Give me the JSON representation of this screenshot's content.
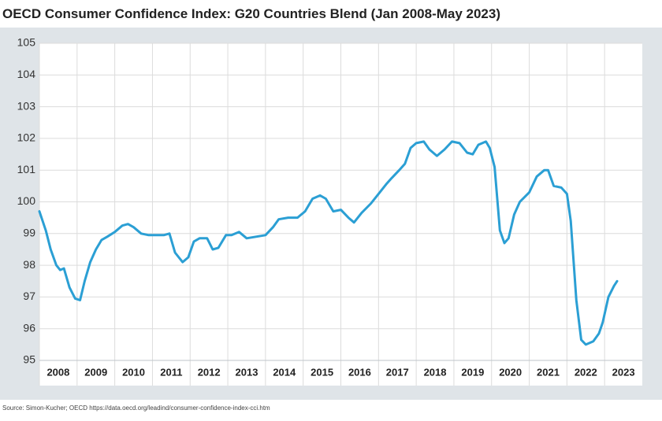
{
  "chart_data": {
    "type": "line",
    "title": "OECD Consumer Confidence Index: G20 Countries Blend (Jan 2008-May 2023)",
    "source": "Source: Simon-Kucher; OECD https://data.oecd.org/leadind/consumer-confidence-index-cci.htm",
    "xlim": [
      2008,
      2024
    ],
    "xticks": [
      {
        "value": 2008.5,
        "label": "2008"
      },
      {
        "value": 2009.5,
        "label": "2009"
      },
      {
        "value": 2010.5,
        "label": "2010"
      },
      {
        "value": 2011.5,
        "label": "2011"
      },
      {
        "value": 2012.5,
        "label": "2012"
      },
      {
        "value": 2013.5,
        "label": "2013"
      },
      {
        "value": 2014.5,
        "label": "2014"
      },
      {
        "value": 2015.5,
        "label": "2015"
      },
      {
        "value": 2016.5,
        "label": "2016"
      },
      {
        "value": 2017.5,
        "label": "2017"
      },
      {
        "value": 2018.5,
        "label": "2018"
      },
      {
        "value": 2019.5,
        "label": "2019"
      },
      {
        "value": 2020.5,
        "label": "2020"
      },
      {
        "value": 2021.5,
        "label": "2021"
      },
      {
        "value": 2022.5,
        "label": "2022"
      },
      {
        "value": 2023.5,
        "label": "2023"
      }
    ],
    "ylim": [
      95,
      105
    ],
    "yticks": [
      95,
      96,
      97,
      98,
      99,
      100,
      101,
      102,
      103,
      104,
      105
    ],
    "grid": true,
    "x": [
      2008.0,
      2008.17,
      2008.3,
      2008.45,
      2008.55,
      2008.65,
      2008.8,
      2008.95,
      2009.08,
      2009.2,
      2009.35,
      2009.5,
      2009.65,
      2009.8,
      2010.0,
      2010.2,
      2010.35,
      2010.5,
      2010.7,
      2010.9,
      2011.1,
      2011.3,
      2011.45,
      2011.6,
      2011.8,
      2011.95,
      2012.1,
      2012.25,
      2012.45,
      2012.6,
      2012.75,
      2012.95,
      2013.1,
      2013.3,
      2013.5,
      2013.75,
      2014.0,
      2014.2,
      2014.35,
      2014.6,
      2014.85,
      2015.05,
      2015.25,
      2015.45,
      2015.6,
      2015.8,
      2016.0,
      2016.2,
      2016.35,
      2016.55,
      2016.8,
      2017.0,
      2017.2,
      2017.35,
      2017.55,
      2017.7,
      2017.85,
      2018.0,
      2018.2,
      2018.35,
      2018.55,
      2018.75,
      2018.95,
      2019.15,
      2019.35,
      2019.5,
      2019.65,
      2019.85,
      2019.95,
      2020.08,
      2020.22,
      2020.34,
      2020.45,
      2020.6,
      2020.75,
      2021.0,
      2021.2,
      2021.4,
      2021.5,
      2021.65,
      2021.85,
      2022.0,
      2022.1,
      2022.25,
      2022.38,
      2022.5,
      2022.7,
      2022.85,
      2022.95,
      2023.1,
      2023.25,
      2023.33
    ],
    "series": [
      {
        "name": "G20",
        "color": "#2b9fd4",
        "values": [
          99.7,
          99.1,
          98.5,
          98.0,
          97.85,
          97.9,
          97.3,
          96.95,
          96.9,
          97.5,
          98.1,
          98.5,
          98.8,
          98.9,
          99.05,
          99.25,
          99.3,
          99.2,
          99.0,
          98.95,
          98.95,
          98.95,
          99.0,
          98.4,
          98.1,
          98.25,
          98.75,
          98.85,
          98.85,
          98.5,
          98.55,
          98.95,
          98.95,
          99.05,
          98.85,
          98.9,
          98.95,
          99.2,
          99.45,
          99.5,
          99.5,
          99.7,
          100.1,
          100.2,
          100.1,
          99.7,
          99.75,
          99.5,
          99.35,
          99.65,
          99.95,
          100.25,
          100.55,
          100.75,
          101.0,
          101.2,
          101.7,
          101.85,
          101.9,
          101.65,
          101.45,
          101.65,
          101.9,
          101.85,
          101.55,
          101.5,
          101.8,
          101.9,
          101.7,
          101.1,
          99.1,
          98.7,
          98.85,
          99.6,
          100.0,
          100.3,
          100.8,
          101.0,
          101.0,
          100.5,
          100.45,
          100.25,
          99.4,
          96.9,
          95.65,
          95.5,
          95.6,
          95.85,
          96.2,
          97.0,
          97.35,
          97.5
        ]
      }
    ]
  }
}
